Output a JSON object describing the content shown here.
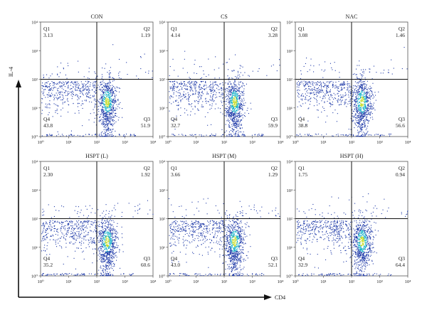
{
  "figure": {
    "y_axis_label": "IL-4",
    "x_axis_label": "CD4"
  },
  "tick_labels": {
    "x": [
      "10⁰",
      "10¹",
      "10²",
      "10³",
      "10⁴"
    ],
    "y": [
      "10⁰",
      "10¹",
      "10²",
      "10³",
      "10⁴"
    ]
  },
  "colors": {
    "dots_low": "#1f3aa8",
    "dots_mid": "#19b3c9",
    "dots_high": "#c8dc24",
    "gate_lines": "#111111",
    "frame": "#555555",
    "axis_arrows": "#111111"
  },
  "chart_data": [
    {
      "type": "scatter",
      "title": "CON",
      "xlim": [
        1,
        10000
      ],
      "ylim": [
        1,
        10000
      ],
      "x_scale": "log",
      "y_scale": "log",
      "gate": {
        "x": 100,
        "y": 100
      },
      "quadrants": [
        {
          "name": "Q1",
          "value": "3.13"
        },
        {
          "name": "Q2",
          "value": "1.19"
        },
        {
          "name": "Q3",
          "value": "51.9"
        },
        {
          "name": "Q4",
          "value": "43.8"
        }
      ]
    },
    {
      "type": "scatter",
      "title": "CS",
      "xlim": [
        1,
        10000
      ],
      "ylim": [
        1,
        10000
      ],
      "x_scale": "log",
      "y_scale": "log",
      "gate": {
        "x": 100,
        "y": 100
      },
      "quadrants": [
        {
          "name": "Q1",
          "value": "4.14"
        },
        {
          "name": "Q2",
          "value": "3.28"
        },
        {
          "name": "Q3",
          "value": "59.9"
        },
        {
          "name": "Q4",
          "value": "32.7"
        }
      ]
    },
    {
      "type": "scatter",
      "title": "NAC",
      "xlim": [
        1,
        10000
      ],
      "ylim": [
        1,
        10000
      ],
      "x_scale": "log",
      "y_scale": "log",
      "gate": {
        "x": 100,
        "y": 100
      },
      "quadrants": [
        {
          "name": "Q1",
          "value": "3.08"
        },
        {
          "name": "Q2",
          "value": "1.46"
        },
        {
          "name": "Q3",
          "value": "56.6"
        },
        {
          "name": "Q4",
          "value": "38.8"
        }
      ]
    },
    {
      "type": "scatter",
      "title": "HSPT (L)",
      "xlim": [
        1,
        10000
      ],
      "ylim": [
        1,
        10000
      ],
      "x_scale": "log",
      "y_scale": "log",
      "gate": {
        "x": 100,
        "y": 100
      },
      "quadrants": [
        {
          "name": "Q1",
          "value": "2.30"
        },
        {
          "name": "Q2",
          "value": "1.92"
        },
        {
          "name": "Q3",
          "value": "60.6"
        },
        {
          "name": "Q4",
          "value": "35.2"
        }
      ]
    },
    {
      "type": "scatter",
      "title": "HSPT (M)",
      "xlim": [
        1,
        10000
      ],
      "ylim": [
        1,
        10000
      ],
      "x_scale": "log",
      "y_scale": "log",
      "gate": {
        "x": 100,
        "y": 100
      },
      "quadrants": [
        {
          "name": "Q1",
          "value": "3.66"
        },
        {
          "name": "Q2",
          "value": "1.29"
        },
        {
          "name": "Q3",
          "value": "52.1"
        },
        {
          "name": "Q4",
          "value": "43.0"
        }
      ]
    },
    {
      "type": "scatter",
      "title": "HSPT (H)",
      "xlim": [
        1,
        10000
      ],
      "ylim": [
        1,
        10000
      ],
      "x_scale": "log",
      "y_scale": "log",
      "gate": {
        "x": 100,
        "y": 100
      },
      "quadrants": [
        {
          "name": "Q1",
          "value": "1.75"
        },
        {
          "name": "Q2",
          "value": "0.94"
        },
        {
          "name": "Q3",
          "value": "64.4"
        },
        {
          "name": "Q4",
          "value": "32.9"
        }
      ]
    }
  ]
}
